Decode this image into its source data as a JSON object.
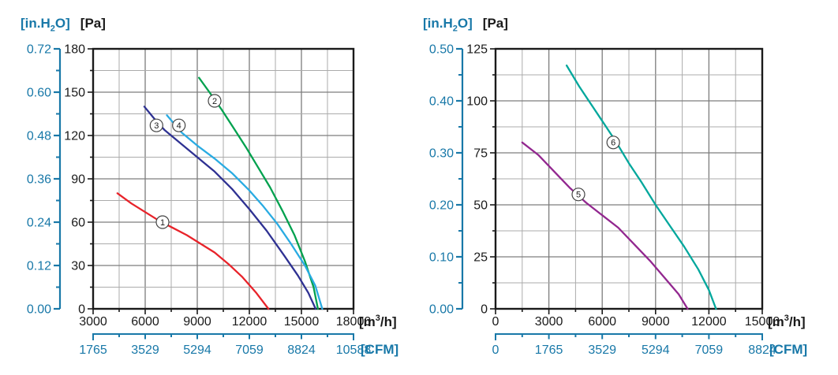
{
  "page": {
    "background": "#ffffff"
  },
  "units": {
    "inh2o": {
      "prefix": "[in.H",
      "sub": "2",
      "suffix": "O]"
    },
    "pa": "[Pa]",
    "m3h": {
      "prefix": "[m",
      "sup": "3",
      "suffix": "/h]"
    },
    "cfm": "[CFM]"
  },
  "colors": {
    "secondary_axis": "#1878a8",
    "primary_axis": "#1a1a1a",
    "grid_major": "#7d7d7d",
    "grid_minor": "#ababab",
    "plot_border": "#1a1a1a",
    "curve_label_stroke": "#444444"
  },
  "chart_data": [
    {
      "type": "line",
      "title": "",
      "xlabel": "[m3/h]",
      "ylabel": "[Pa]",
      "grid": "on",
      "x_axis": {
        "min": 3000,
        "max": 18000,
        "major_step": 3000,
        "minor_step": 1500,
        "tick_labels": [
          "3000",
          "6000",
          "9000",
          "12000",
          "15000",
          "18000"
        ]
      },
      "y_axis": {
        "min": 0,
        "max": 180,
        "major_step": 30,
        "minor_step": 15,
        "tick_labels": [
          "180",
          "150",
          "120",
          "90",
          "60",
          "30",
          "0"
        ]
      },
      "y2_axis": {
        "unit": "in.H2O",
        "labels": [
          "0.72",
          "0.60",
          "0.48",
          "0.36",
          "0.24",
          "0.12",
          "0.00"
        ]
      },
      "x2_axis": {
        "unit": "CFM",
        "labels": [
          "1765",
          "3529",
          "5294",
          "7059",
          "8824",
          "10588"
        ]
      },
      "series": [
        {
          "name": "1",
          "color": "#e8232a",
          "label_xy": [
            7000,
            60
          ],
          "points": [
            [
              4400,
              80
            ],
            [
              5200,
              73
            ],
            [
              6000,
              67
            ],
            [
              6800,
              61
            ],
            [
              7600,
              56
            ],
            [
              8400,
              51
            ],
            [
              9200,
              45
            ],
            [
              10000,
              39
            ],
            [
              10800,
              31
            ],
            [
              11600,
              22
            ],
            [
              12400,
              11
            ],
            [
              13100,
              0
            ]
          ]
        },
        {
          "name": "2",
          "color": "#00a14e",
          "label_xy": [
            10000,
            144
          ],
          "points": [
            [
              9100,
              160
            ],
            [
              9700,
              150
            ],
            [
              10400,
              138
            ],
            [
              11100,
              125
            ],
            [
              11800,
              112
            ],
            [
              12500,
              98
            ],
            [
              13200,
              84
            ],
            [
              13900,
              68
            ],
            [
              14600,
              51
            ],
            [
              15200,
              33
            ],
            [
              15700,
              15
            ],
            [
              15950,
              0
            ]
          ]
        },
        {
          "name": "3",
          "color": "#2e3192",
          "label_xy": [
            6650,
            127
          ],
          "points": [
            [
              5950,
              140
            ],
            [
              6500,
              132
            ],
            [
              7100,
              124
            ],
            [
              8000,
              115
            ],
            [
              9000,
              105
            ],
            [
              10000,
              95
            ],
            [
              11000,
              83
            ],
            [
              12000,
              69
            ],
            [
              13000,
              54
            ],
            [
              14000,
              37
            ],
            [
              14800,
              23
            ],
            [
              15400,
              11
            ],
            [
              15820,
              0
            ]
          ]
        },
        {
          "name": "4",
          "color": "#29abe2",
          "label_xy": [
            7940,
            127
          ],
          "points": [
            [
              7250,
              134
            ],
            [
              8100,
              122
            ],
            [
              9000,
              113
            ],
            [
              10000,
              104
            ],
            [
              11000,
              94
            ],
            [
              12000,
              82
            ],
            [
              12800,
              71
            ],
            [
              13600,
              59
            ],
            [
              14400,
              45
            ],
            [
              15200,
              30
            ],
            [
              15800,
              16
            ],
            [
              16200,
              0
            ]
          ]
        }
      ]
    },
    {
      "type": "line",
      "title": "",
      "xlabel": "[m3/h]",
      "ylabel": "[Pa]",
      "grid": "on",
      "x_axis": {
        "min": 0,
        "max": 15000,
        "major_step": 3000,
        "minor_step": 1500,
        "tick_labels": [
          "0",
          "3000",
          "6000",
          "9000",
          "12000",
          "15000"
        ]
      },
      "y_axis": {
        "min": 0,
        "max": 125,
        "major_step": 25,
        "minor_step": 12.5,
        "tick_labels": [
          "125",
          "100",
          "75",
          "50",
          "25",
          "0"
        ]
      },
      "y2_axis": {
        "unit": "in.H2O",
        "labels": [
          "0.50",
          "0.40",
          "0.30",
          "0.20",
          "0.10",
          "0.00"
        ]
      },
      "x2_axis": {
        "unit": "CFM",
        "labels": [
          "0",
          "1765",
          "3529",
          "5294",
          "7059",
          "8824"
        ]
      },
      "series": [
        {
          "name": "5",
          "color": "#92278f",
          "label_xy": [
            4660,
            55
          ],
          "points": [
            [
              1500,
              80
            ],
            [
              2400,
              74
            ],
            [
              3300,
              66
            ],
            [
              4200,
              58
            ],
            [
              5100,
              51
            ],
            [
              6000,
              45
            ],
            [
              6900,
              39
            ],
            [
              7800,
              31
            ],
            [
              8700,
              23
            ],
            [
              9600,
              14
            ],
            [
              10300,
              7
            ],
            [
              10800,
              0
            ]
          ]
        },
        {
          "name": "6",
          "color": "#00a79c",
          "label_xy": [
            6620,
            80
          ],
          "points": [
            [
              4000,
              117
            ],
            [
              4700,
              107
            ],
            [
              5400,
              98
            ],
            [
              6100,
              89
            ],
            [
              6800,
              80
            ],
            [
              7500,
              70
            ],
            [
              8200,
              61
            ],
            [
              9000,
              50
            ],
            [
              9800,
              40
            ],
            [
              10600,
              30
            ],
            [
              11400,
              19
            ],
            [
              12000,
              9
            ],
            [
              12400,
              0
            ]
          ]
        }
      ]
    }
  ]
}
